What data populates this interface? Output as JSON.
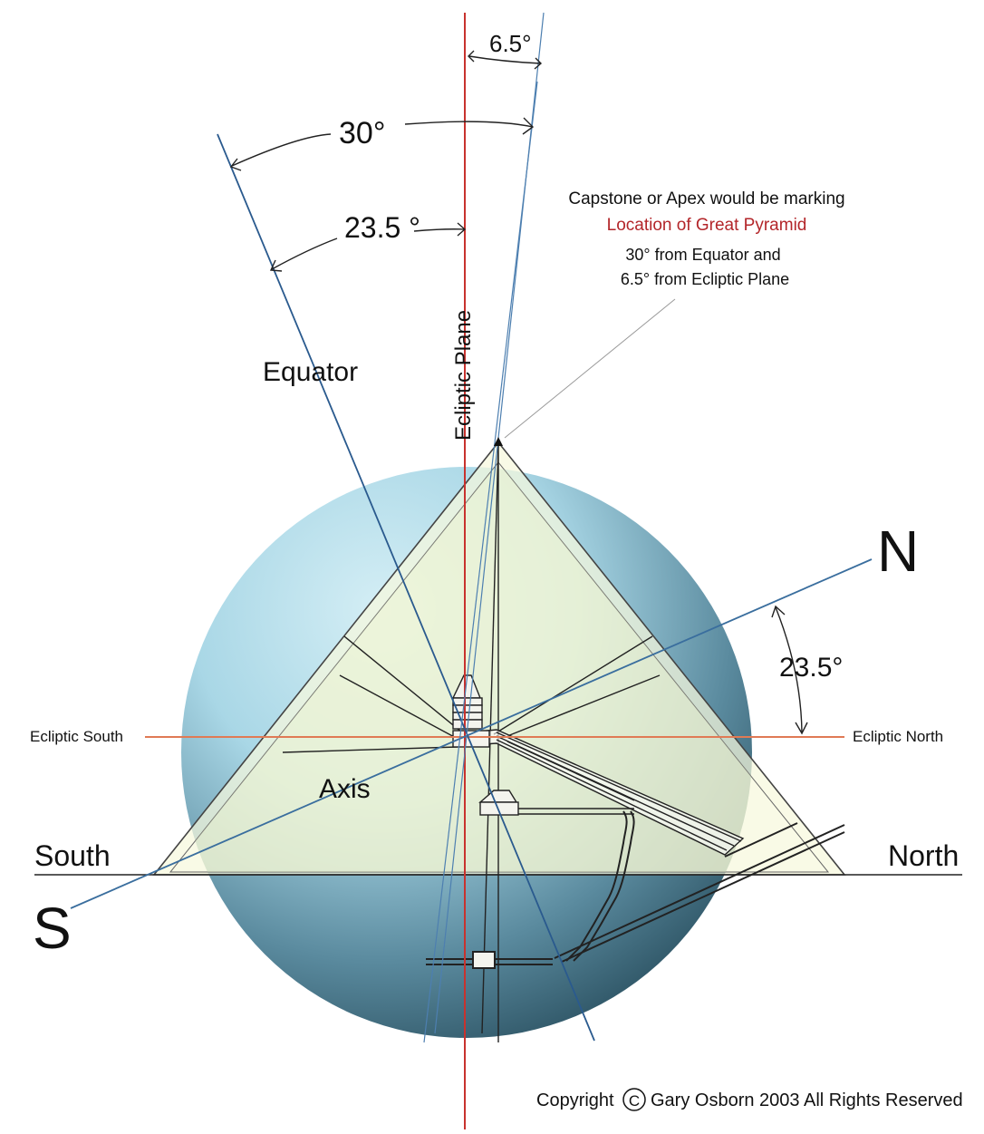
{
  "angles": {
    "ecliptic_offset": "6.5°",
    "equator_from_vertical": "30°",
    "axis_tilt_top": "23.5 °",
    "axis_tilt_right": "23.5°"
  },
  "labels": {
    "equator": "Equator",
    "ecliptic_plane": "Ecliptic Plane",
    "ecliptic_south": "Ecliptic South",
    "ecliptic_north": "Ecliptic North",
    "axis": "Axis",
    "south": "South",
    "north": "North",
    "big_n": "N",
    "big_s": "S"
  },
  "note": {
    "line1": "Capstone or Apex would be marking",
    "line2": "Location of Great Pyramid",
    "line3": "30° from Equator and",
    "line4": "6.5° from Ecliptic Plane"
  },
  "copyright": {
    "prefix": "Copyright",
    "symbol": "C",
    "text": "Gary Osborn 2003 All Rights Reserved"
  },
  "colors": {
    "ecliptic_red": "#c8322e",
    "horizontal_red": "#e07a55",
    "axis_blue": "#3a6e9e",
    "sphere_light": "#a8d8e8",
    "sphere_dark": "#10303e",
    "pyramid_fill": "#eef3d2",
    "highlight_red": "#b3262a"
  }
}
